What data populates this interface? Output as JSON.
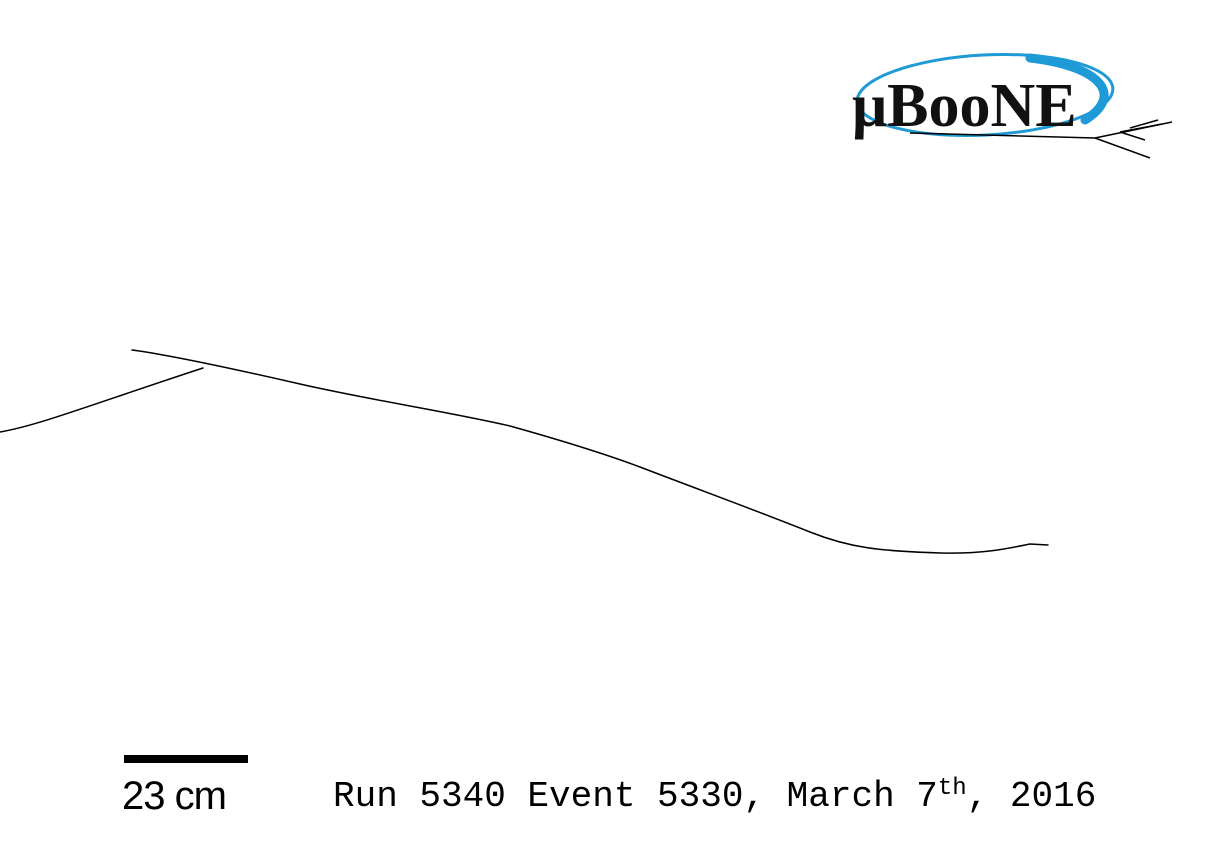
{
  "logo": {
    "text": "μBooNE",
    "ring_color": "#1e9ad6",
    "text_color": "#111111"
  },
  "scale_bar": {
    "label": "23 cm"
  },
  "caption": {
    "prefix": "Run 5340 Event 5330, March 7",
    "ordinal_suffix": "th",
    "year_part": ", 2016"
  },
  "colors": {
    "background": "#ffffff",
    "track": "#000000"
  }
}
